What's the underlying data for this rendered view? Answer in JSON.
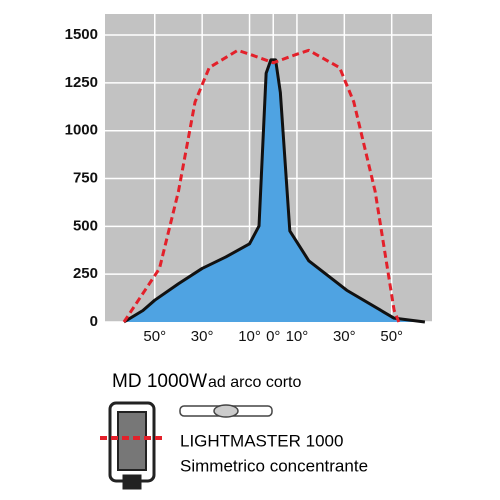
{
  "chart_data": {
    "type": "line",
    "xlim": [
      -71,
      67
    ],
    "ylim": [
      0,
      1610
    ],
    "yticks": [
      0,
      250,
      500,
      750,
      1000,
      1250,
      1500
    ],
    "xticks": [
      {
        "value": -50,
        "label": "50°"
      },
      {
        "value": -30,
        "label": "30°"
      },
      {
        "value": -10,
        "label": "10°"
      },
      {
        "value": 0,
        "label": "0°"
      },
      {
        "value": 10,
        "label": "10°"
      },
      {
        "value": 30,
        "label": "30°"
      },
      {
        "value": 50,
        "label": "50°"
      }
    ],
    "grid": true,
    "series": [
      {
        "color": "#111111",
        "fill": "#4fa3e2",
        "dashed": false,
        "x": [
          -63,
          -55,
          -50,
          -40,
          -30,
          -20,
          -10,
          -6,
          -3,
          -1,
          1,
          3,
          7,
          15,
          31,
          51,
          64
        ],
        "values": [
          0,
          60,
          114,
          200,
          280,
          340,
          409,
          502,
          1300,
          1370,
          1370,
          1200,
          476,
          320,
          166,
          20,
          0
        ]
      },
      {
        "color": "#e3202a",
        "fill": null,
        "dashed": true,
        "x": [
          -63,
          -48,
          -40,
          -33,
          -27,
          -15,
          -10,
          0,
          10,
          15,
          28,
          34,
          43,
          51,
          53
        ],
        "values": [
          0,
          280,
          683,
          1150,
          1330,
          1420,
          1400,
          1355,
          1400,
          1420,
          1330,
          1150,
          683,
          62,
          0
        ]
      }
    ],
    "caption": "MD 1000W",
    "caption_note": "ad arco corto",
    "product": "LIGHTMASTER 1000",
    "description": "Simmetrico concentrante"
  }
}
